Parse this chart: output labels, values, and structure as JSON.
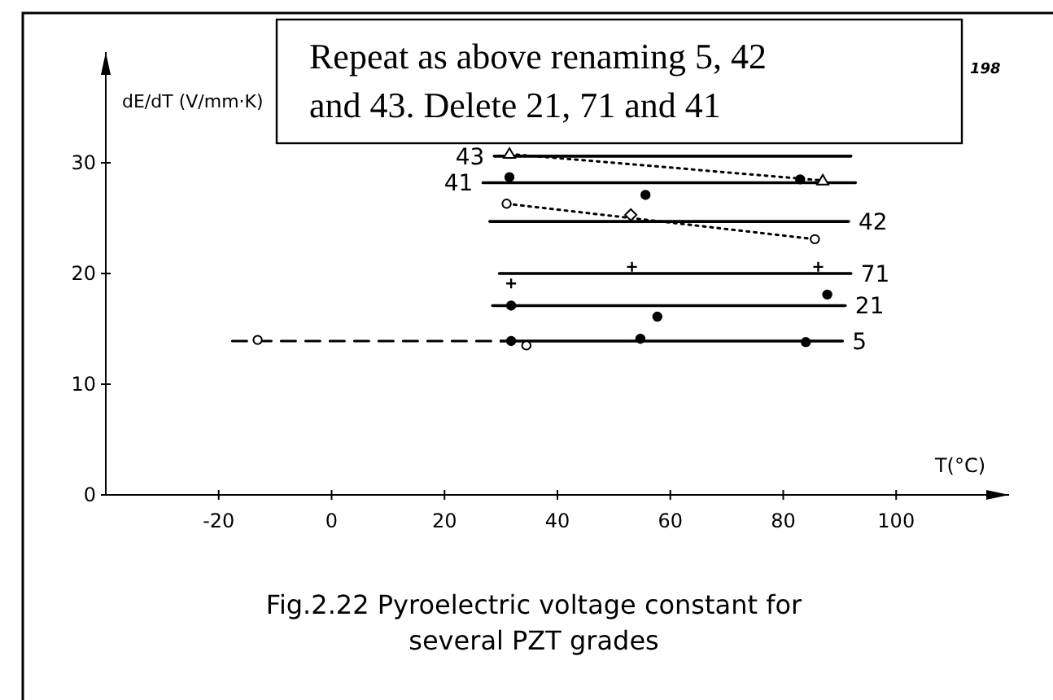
{
  "chart_data": {
    "type": "line",
    "xlabel": "T(°C)",
    "ylabel": "dE/dT (V/mm·K)",
    "annotations": [
      "Repeat as above renaming 5, 42 and 43. Delete 21, 71 and 41",
      "198",
      "Fig.2.22 Pyroelectric voltage constant for several PZT grades"
    ],
    "xlim": [
      -40,
      120
    ],
    "ylim": [
      0,
      40
    ],
    "xticks": [
      -20,
      0,
      20,
      40,
      60,
      80,
      100
    ],
    "yticks": [
      0,
      10,
      20,
      30
    ],
    "grid": false,
    "series": [
      {
        "name": "43",
        "color": "#000000",
        "line_style": "solid",
        "marker": "none",
        "x": [
          28.8,
          92
        ],
        "values": [
          30.6,
          30.6
        ]
      },
      {
        "name": "41",
        "color": "#000000",
        "line_style": "solid",
        "marker": "none",
        "x": [
          26.8,
          92.8
        ],
        "values": [
          28.2,
          28.2
        ]
      },
      {
        "name": "42",
        "color": "#000000",
        "line_style": "solid",
        "marker": "none",
        "x": [
          28,
          91.6
        ],
        "values": [
          24.7,
          24.7
        ]
      },
      {
        "name": "71",
        "color": "#000000",
        "line_style": "solid",
        "marker": "none",
        "x": [
          29.7,
          92
        ],
        "values": [
          20.0,
          20.0
        ]
      },
      {
        "name": "21",
        "color": "#000000",
        "line_style": "solid",
        "marker": "none",
        "x": [
          28.5,
          91
        ],
        "values": [
          17.1,
          17.1
        ]
      },
      {
        "name": "5",
        "color": "#000000",
        "line_style": "solid",
        "marker": "none",
        "x": [
          30,
          90.5
        ],
        "values": [
          13.9,
          13.9
        ]
      },
      {
        "color": "#000000",
        "line_style": "dashed",
        "marker": "none",
        "x": [
          -17.6,
          30
        ],
        "values": [
          13.9,
          13.9
        ]
      },
      {
        "color": "#000000",
        "line_style": "dotted",
        "marker": "none",
        "x": [
          31.5,
          87
        ],
        "values": [
          30.8,
          28.4
        ]
      },
      {
        "type": "scatter",
        "color": "#ffffff",
        "marker": "triangle",
        "x": [
          31.5,
          87
        ],
        "values": [
          30.8,
          28.4
        ]
      },
      {
        "type": "scatter",
        "color": "#000000",
        "marker": "circle",
        "x": [
          31.5,
          55.6,
          83
        ],
        "values": [
          28.7,
          27.1,
          28.5
        ]
      },
      {
        "color": "#000000",
        "line_style": "dotted",
        "marker": "none",
        "x": [
          31,
          85.6
        ],
        "values": [
          26.3,
          23.1
        ]
      },
      {
        "type": "scatter",
        "color": "#ffffff",
        "marker": "circle",
        "x": [
          31,
          85.6
        ],
        "values": [
          26.3,
          23.1
        ]
      },
      {
        "type": "scatter",
        "color": "#ffffff",
        "marker": "diamond",
        "x": [
          53
        ],
        "values": [
          25.3
        ]
      },
      {
        "type": "scatter",
        "color": "#000000",
        "marker": "cross",
        "x": [
          31.8,
          53.2,
          86.2
        ],
        "values": [
          19.1,
          20.6,
          20.6
        ]
      },
      {
        "type": "scatter",
        "color": "#000000",
        "marker": "circle",
        "x": [
          31.8,
          57.7,
          87.8
        ],
        "values": [
          17.1,
          16.1,
          18.1
        ]
      },
      {
        "type": "scatter",
        "color": "#000000",
        "marker": "circle",
        "x": [
          31.8,
          54.7,
          84
        ],
        "values": [
          13.9,
          14.1,
          13.8
        ]
      },
      {
        "type": "scatter",
        "color": "#ffffff",
        "marker": "circle",
        "x": [
          -13.1,
          34.5
        ],
        "values": [
          14.0,
          13.5
        ]
      }
    ]
  }
}
